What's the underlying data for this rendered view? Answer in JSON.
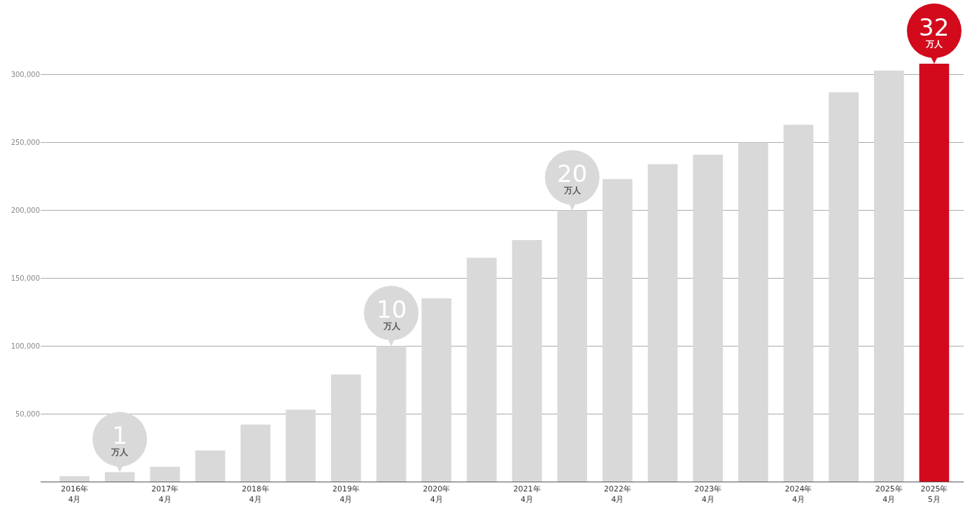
{
  "chart_data": {
    "type": "bar",
    "categories": [
      "2016年\n4月",
      null,
      "2017年\n4月",
      null,
      "2018年\n4月",
      null,
      "2019年\n4月",
      null,
      "2020年\n4月",
      null,
      "2021年\n4月",
      null,
      "2022年\n4月",
      null,
      "2023年\n4月",
      null,
      "2024年\n4月",
      null,
      "2025年\n4月",
      "2025年\n5月"
    ],
    "values": [
      4000,
      7000,
      11000,
      23000,
      42000,
      53000,
      79000,
      100000,
      135000,
      165000,
      178000,
      200000,
      223000,
      234000,
      241000,
      250000,
      263000,
      287000,
      303000,
      308000
    ],
    "colors": [
      "#d9d9d9",
      "#d9d9d9",
      "#d9d9d9",
      "#d9d9d9",
      "#d9d9d9",
      "#d9d9d9",
      "#d9d9d9",
      "#d9d9d9",
      "#d9d9d9",
      "#d9d9d9",
      "#d9d9d9",
      "#d9d9d9",
      "#d9d9d9",
      "#d9d9d9",
      "#d9d9d9",
      "#d9d9d9",
      "#d9d9d9",
      "#d9d9d9",
      "#d9d9d9",
      "#d20a1c"
    ],
    "annotations": [
      "1\n万人",
      {
        "text": "10\n万人",
        "y": 100000
      },
      {
        "text": "20\n万人",
        "y": 200000
      },
      "32\n万人"
    ],
    "ylim": [
      0,
      355000
    ],
    "yticks": [
      {
        "value": 50000,
        "label": "50,000"
      },
      {
        "value": 100000,
        "label": "100,000"
      },
      {
        "value": 150000,
        "label": "150,000"
      },
      {
        "value": 200000,
        "label": "200,000"
      },
      {
        "value": 250000,
        "label": "250,000"
      },
      {
        "value": 300000,
        "label": "300,000"
      }
    ],
    "grid": "y"
  }
}
